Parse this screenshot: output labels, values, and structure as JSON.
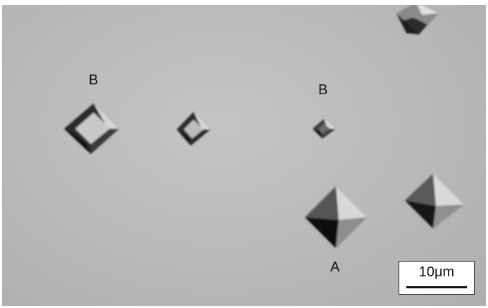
{
  "labels": {
    "b_left": "B",
    "b_right": "B",
    "a": "A"
  },
  "scale_bar": {
    "text": "10μm"
  }
}
